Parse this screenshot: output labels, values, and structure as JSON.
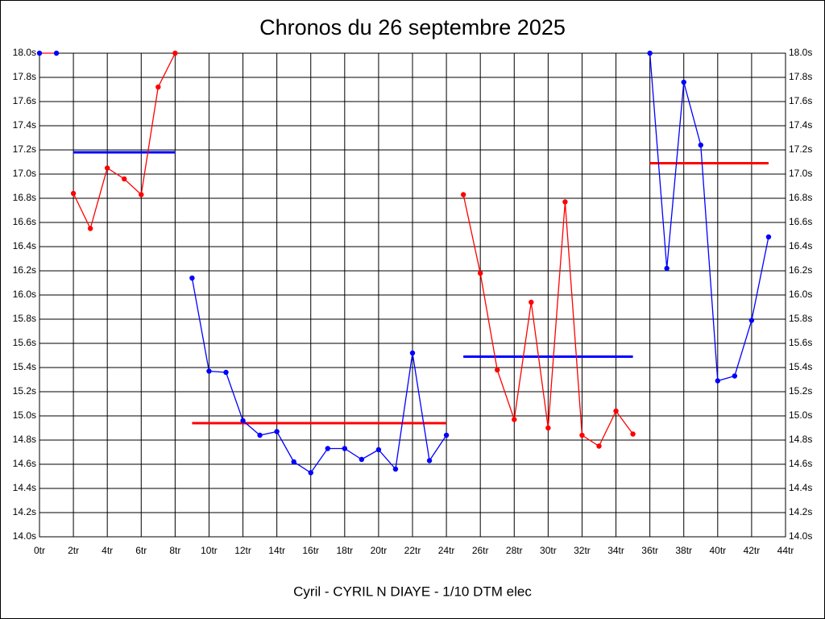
{
  "chart_data": {
    "type": "line",
    "title": "Chronos du 26 septembre 2025",
    "xlabel": "Cyril - CYRIL N DIAYE - 1/10 DTM elec",
    "xlim": [
      0,
      44
    ],
    "ylim": [
      14.0,
      18.0
    ],
    "grid": true,
    "xticks": [
      {
        "value": 0,
        "label": "0tr"
      },
      {
        "value": 2,
        "label": "2tr"
      },
      {
        "value": 4,
        "label": "4tr"
      },
      {
        "value": 6,
        "label": "6tr"
      },
      {
        "value": 8,
        "label": "8tr"
      },
      {
        "value": 10,
        "label": "10tr"
      },
      {
        "value": 12,
        "label": "12tr"
      },
      {
        "value": 14,
        "label": "14tr"
      },
      {
        "value": 16,
        "label": "16tr"
      },
      {
        "value": 18,
        "label": "18tr"
      },
      {
        "value": 20,
        "label": "20tr"
      },
      {
        "value": 22,
        "label": "22tr"
      },
      {
        "value": 24,
        "label": "24tr"
      },
      {
        "value": 26,
        "label": "26tr"
      },
      {
        "value": 28,
        "label": "28tr"
      },
      {
        "value": 30,
        "label": "30tr"
      },
      {
        "value": 32,
        "label": "32tr"
      },
      {
        "value": 34,
        "label": "34tr"
      },
      {
        "value": 36,
        "label": "36tr"
      },
      {
        "value": 38,
        "label": "38tr"
      },
      {
        "value": 40,
        "label": "40tr"
      },
      {
        "value": 42,
        "label": "42tr"
      },
      {
        "value": 44,
        "label": "44tr"
      }
    ],
    "yticks": [
      {
        "value": 14.0,
        "label": "14.0s"
      },
      {
        "value": 14.2,
        "label": "14.2s"
      },
      {
        "value": 14.4,
        "label": "14.4s"
      },
      {
        "value": 14.6,
        "label": "14.6s"
      },
      {
        "value": 14.8,
        "label": "14.8s"
      },
      {
        "value": 15.0,
        "label": "15.0s"
      },
      {
        "value": 15.2,
        "label": "15.2s"
      },
      {
        "value": 15.4,
        "label": "15.4s"
      },
      {
        "value": 15.6,
        "label": "15.6s"
      },
      {
        "value": 15.8,
        "label": "15.8s"
      },
      {
        "value": 16.0,
        "label": "16.0s"
      },
      {
        "value": 16.2,
        "label": "16.2s"
      },
      {
        "value": 16.4,
        "label": "16.4s"
      },
      {
        "value": 16.6,
        "label": "16.6s"
      },
      {
        "value": 16.8,
        "label": "16.8s"
      },
      {
        "value": 17.0,
        "label": "17.0s"
      },
      {
        "value": 17.2,
        "label": "17.2s"
      },
      {
        "value": 17.4,
        "label": "17.4s"
      },
      {
        "value": 17.6,
        "label": "17.6s"
      },
      {
        "value": 17.8,
        "label": "17.8s"
      },
      {
        "value": 18.0,
        "label": "18.0s"
      }
    ],
    "series": [
      {
        "color": "#ff0000",
        "marker_color": "#0000ff",
        "x": [
          0,
          1
        ],
        "values": [
          18.0,
          18.0
        ]
      },
      {
        "color": "#ff0000",
        "marker_color": "#ff0000",
        "x": [
          2,
          3,
          4,
          5,
          6,
          7,
          8
        ],
        "values": [
          16.84,
          16.55,
          17.05,
          16.96,
          16.83,
          17.72,
          18.0
        ]
      },
      {
        "color": "#0000ff",
        "marker_color": "#0000ff",
        "x": [
          9,
          10,
          11,
          12,
          13,
          14,
          15,
          16,
          17,
          18,
          19,
          20,
          21,
          22,
          23,
          24
        ],
        "values": [
          16.14,
          15.37,
          15.36,
          14.96,
          14.84,
          14.87,
          14.62,
          14.53,
          14.73,
          14.73,
          14.64,
          14.72,
          14.56,
          15.52,
          14.63,
          14.84
        ]
      },
      {
        "color": "#ff0000",
        "marker_color": "#ff0000",
        "x": [
          25,
          26,
          27,
          28,
          29,
          30,
          31,
          32,
          33,
          34,
          35
        ],
        "values": [
          16.83,
          16.18,
          15.38,
          14.97,
          15.94,
          14.9,
          16.77,
          14.84,
          14.75,
          15.04,
          14.85
        ]
      },
      {
        "color": "#0000ff",
        "marker_color": "#0000ff",
        "x": [
          36,
          37,
          38,
          39,
          40,
          41,
          42,
          43
        ],
        "values": [
          18.0,
          16.22,
          17.76,
          17.24,
          15.29,
          15.33,
          15.79,
          16.48
        ]
      }
    ],
    "mean_lines": [
      {
        "color": "#0000ff",
        "x": [
          2,
          8
        ],
        "value": 17.18
      },
      {
        "color": "#ff0000",
        "x": [
          9,
          24
        ],
        "value": 14.94
      },
      {
        "color": "#0000ff",
        "x": [
          25,
          35
        ],
        "value": 15.49
      },
      {
        "color": "#ff0000",
        "x": [
          36,
          43
        ],
        "value": 17.09
      }
    ]
  }
}
